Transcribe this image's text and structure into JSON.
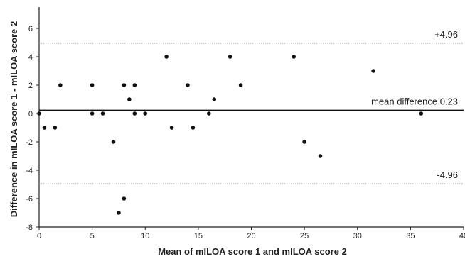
{
  "chart_data": {
    "type": "scatter",
    "title": "",
    "xlabel": "Mean of mILOA score 1 and mILOA score 2",
    "ylabel": "Difference in mILOA score 1 - mILOA score 2",
    "xlim": [
      0,
      40
    ],
    "ylim": [
      -8,
      7.5
    ],
    "xticks": [
      "0",
      "5",
      "10",
      "15",
      "20",
      "25",
      "30",
      "35",
      "40"
    ],
    "yticks": [
      "6",
      "4",
      "2",
      "0",
      "-2",
      "-4",
      "-6",
      "-8"
    ],
    "grid": false,
    "reference_lines": [
      {
        "label": "+4.96",
        "value": 4.96,
        "style": "dotted"
      },
      {
        "label": "mean difference 0.23",
        "value": 0.23,
        "style": "solid"
      },
      {
        "label": "-4.96",
        "value": -4.96,
        "style": "dotted"
      }
    ],
    "points": [
      {
        "x": 0,
        "y": 0
      },
      {
        "x": 0.5,
        "y": -1
      },
      {
        "x": 1.5,
        "y": -1
      },
      {
        "x": 2,
        "y": 2
      },
      {
        "x": 5,
        "y": 2
      },
      {
        "x": 5,
        "y": 0
      },
      {
        "x": 6,
        "y": 0
      },
      {
        "x": 7,
        "y": -2
      },
      {
        "x": 7.5,
        "y": -7
      },
      {
        "x": 8,
        "y": -6
      },
      {
        "x": 8,
        "y": 2
      },
      {
        "x": 8.5,
        "y": 1
      },
      {
        "x": 9,
        "y": 2
      },
      {
        "x": 9,
        "y": 0
      },
      {
        "x": 10,
        "y": 0
      },
      {
        "x": 12,
        "y": 4
      },
      {
        "x": 12.5,
        "y": -1
      },
      {
        "x": 14,
        "y": 2
      },
      {
        "x": 14.5,
        "y": -1
      },
      {
        "x": 16,
        "y": 0
      },
      {
        "x": 16.5,
        "y": 1
      },
      {
        "x": 18,
        "y": 4
      },
      {
        "x": 19,
        "y": 2
      },
      {
        "x": 24,
        "y": 4
      },
      {
        "x": 25,
        "y": -2
      },
      {
        "x": 26.5,
        "y": -3
      },
      {
        "x": 31.5,
        "y": 3
      },
      {
        "x": 36,
        "y": 0
      }
    ]
  }
}
